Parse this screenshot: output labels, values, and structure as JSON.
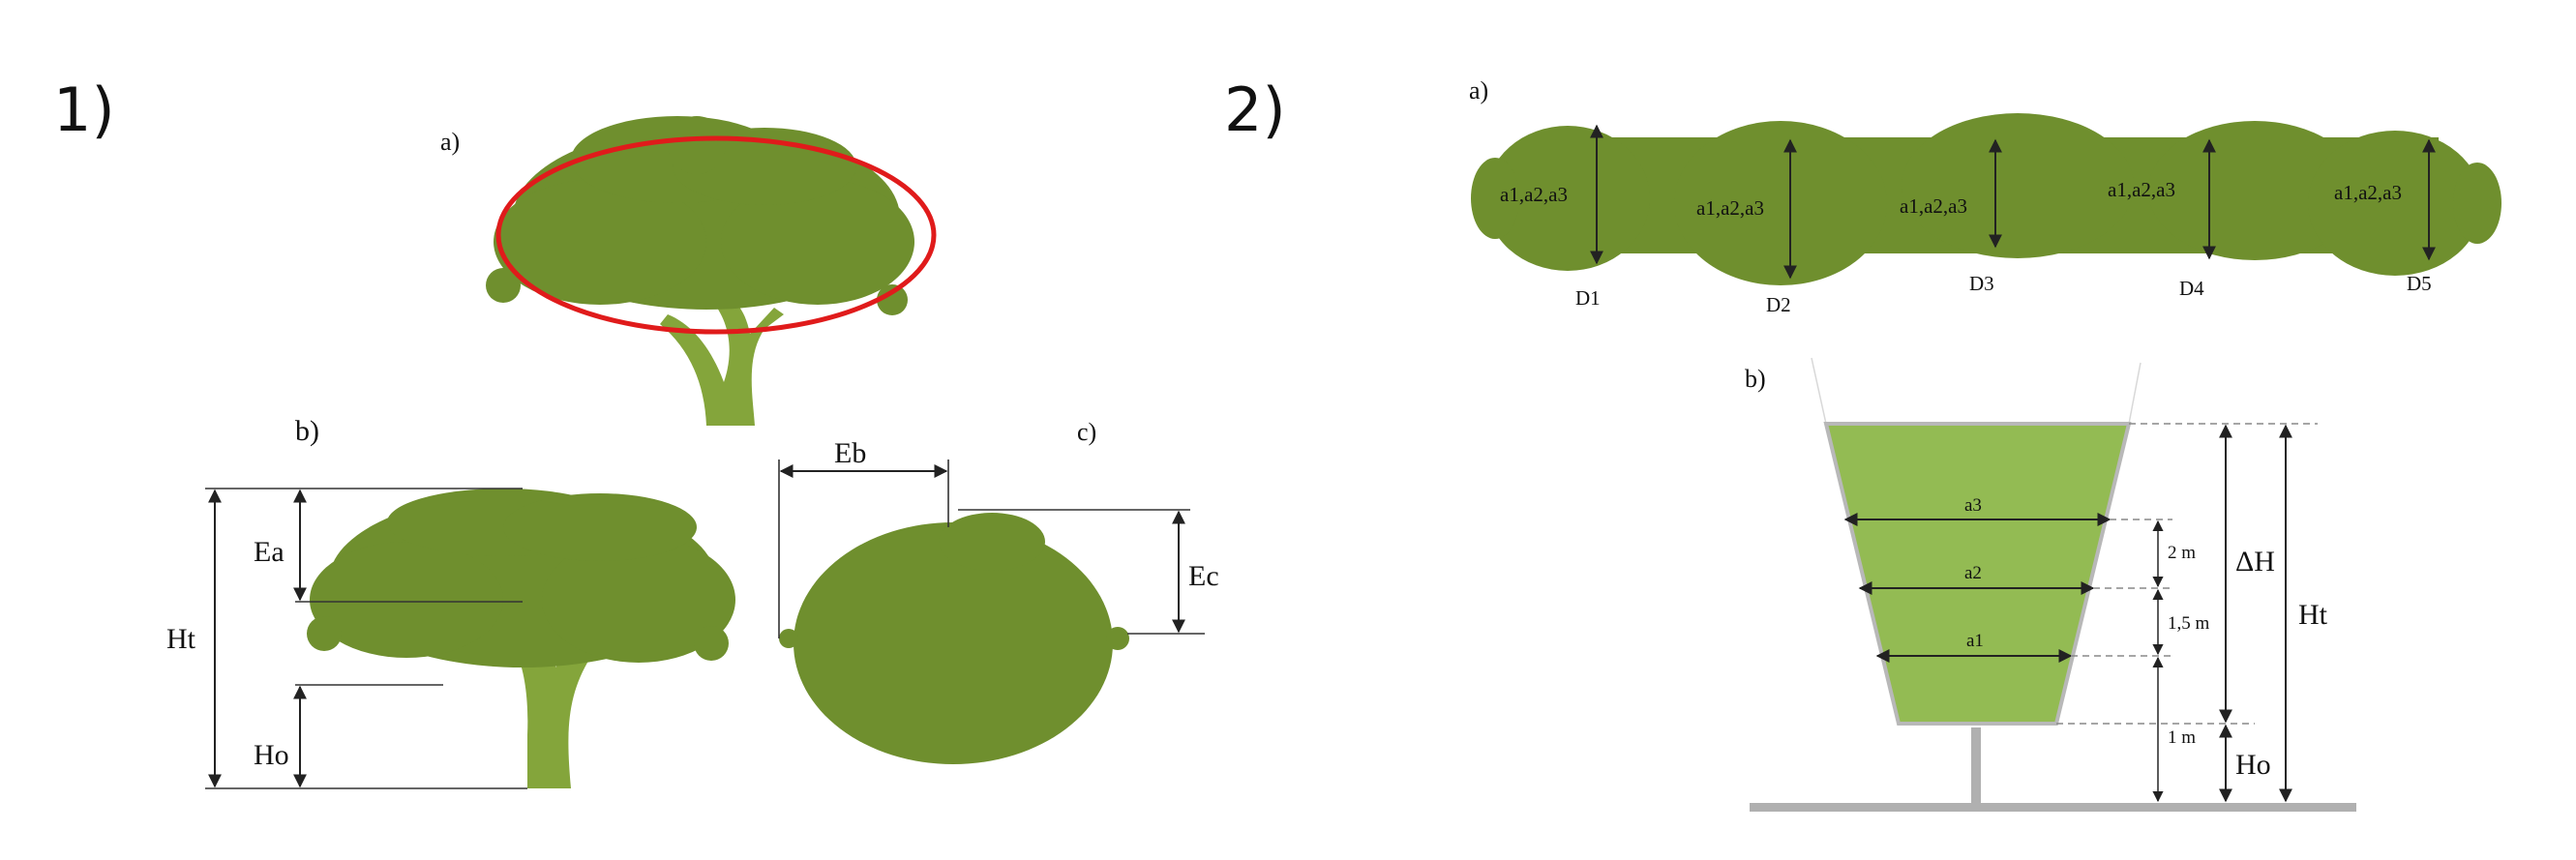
{
  "colors": {
    "foliage": "#6f8f2e",
    "foliage_light": "#93bb53",
    "trunk": "#84a53b",
    "ellipse": "#e01b1b",
    "ground": "#b0b0b0"
  },
  "panel1": {
    "number": "1)",
    "sub_a": "a)",
    "sub_b": "b)",
    "sub_c": "c)",
    "labels": {
      "Ea": "Ea",
      "Ht": "Ht",
      "Ho": "Ho",
      "Eb": "Eb",
      "Ec": "Ec"
    }
  },
  "panel2": {
    "number": "2)",
    "sub_a": "a)",
    "sub_b": "b)",
    "hedge": {
      "sections": [
        {
          "label": "a1,a2,a3",
          "diameter": "D1"
        },
        {
          "label": "a1,a2,a3",
          "diameter": "D2"
        },
        {
          "label": "a1,a2,a3",
          "diameter": "D3"
        },
        {
          "label": "a1,a2,a3",
          "diameter": "D4"
        },
        {
          "label": "a1,a2,a3",
          "diameter": "D5"
        }
      ]
    },
    "profile": {
      "widths": [
        "a3",
        "a2",
        "a1"
      ],
      "segments": [
        "2 m",
        "1,5 m",
        "1 m"
      ],
      "delta_h": "ΔH",
      "ht": "Ht",
      "ho": "Ho"
    }
  }
}
